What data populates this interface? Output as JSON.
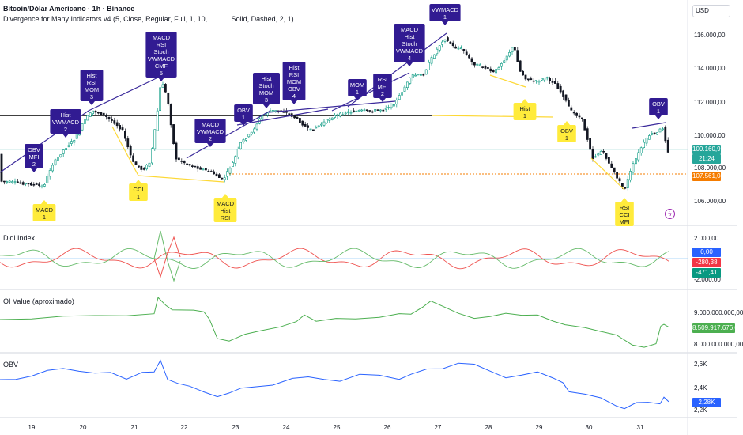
{
  "header": {
    "title": "Bitcoin/Dólar Americano · 1h · Binance",
    "indicator": "Divergence for Many Indicators v4 (5, Close, Regular, Full, 1, 10, ",
    "indicator_tail": "Solid, Dashed, 2, 1)"
  },
  "currency_button": "USD",
  "price_axis": [
    "116.000,00",
    "114.000,00",
    "112.000,00",
    "110.000,00",
    "108.000,00",
    "106.000,00"
  ],
  "price_tags": {
    "last": "109.160,93",
    "countdown": "21:24",
    "level": "107.561,04"
  },
  "didi_pane": {
    "label": "Didi Index",
    "axis": [
      "2.000,00",
      "-2.000,00"
    ],
    "tags": {
      "zero": "0,00",
      "red": "-280,38",
      "green": "-471,41"
    }
  },
  "oi_pane": {
    "label": "OI Value (aproximado)",
    "axis": [
      "9.000.000.000,00",
      "8.000.000.000,00"
    ],
    "tag": "8.509.917.676,07"
  },
  "obv_pane": {
    "label": "OBV",
    "axis": [
      "2,6K",
      "2,4K",
      "2,2K"
    ],
    "tag": "2,28K"
  },
  "time_axis": [
    "19",
    "20",
    "21",
    "22",
    "23",
    "24",
    "25",
    "26",
    "27",
    "28",
    "29",
    "30",
    "31"
  ],
  "bearish_labels": [
    [
      "OBV",
      "MFI",
      "2"
    ],
    [
      "Hist",
      "VWMACD",
      "2"
    ],
    [
      "Hist",
      "RSI",
      "MOM",
      "3"
    ],
    [
      "MACD",
      "RSI",
      "Stoch",
      "VWMACD",
      "CMF",
      "5"
    ],
    [
      "MACD",
      "VWMACD",
      "2"
    ],
    [
      "OBV",
      "1"
    ],
    [
      "Hist",
      "Stoch",
      "MOM",
      "3"
    ],
    [
      "Hist",
      "RSI",
      "MOM",
      "OBV",
      "4"
    ],
    [
      "MOM",
      "1"
    ],
    [
      "RSI",
      "MFI",
      "2"
    ],
    [
      "MACD",
      "Hist",
      "Stoch",
      "VWMACD",
      "4"
    ],
    [
      "VWMACD",
      "1"
    ],
    [
      "OBV",
      "1"
    ]
  ],
  "bullish_labels": [
    [
      "MACD",
      "1"
    ],
    [
      "CCI",
      "1"
    ],
    [
      "MACD",
      "Hist",
      "RSI"
    ],
    [
      "Hist",
      "1"
    ],
    [
      "OBV",
      "1"
    ],
    [
      "RSI",
      "CCI",
      "MFI"
    ]
  ],
  "colors": {
    "bearish": "#311b92",
    "bullish": "#ffeb3b",
    "didi_red": "#ef5350",
    "didi_green": "#66bb6a",
    "didi_blue": "#2962ff",
    "oi_green": "#4caf50",
    "obv_blue": "#2962ff",
    "level_orange": "#f57c00",
    "last_price": "#26a69a"
  }
}
